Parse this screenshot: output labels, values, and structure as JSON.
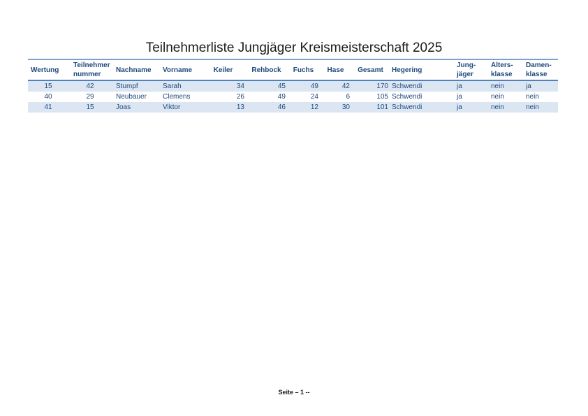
{
  "page": {
    "title": "Teilnehmerliste Jungjäger Kreismeisterschaft 2025",
    "footer": "Seite – 1 --"
  },
  "colors": {
    "header_text": "#1F497D",
    "cell_text": "#1F497D",
    "row_stripe": "#DCE6F2",
    "table_top_border": "#7BA0CD",
    "header_bottom_border": "#4F81BD",
    "title_text": "#1A1A1A"
  },
  "table": {
    "columns": [
      {
        "key": "wertung",
        "label": "Wertung"
      },
      {
        "key": "teilnehmernummer",
        "label": "Teilnehmer\nnummer"
      },
      {
        "key": "nachname",
        "label": "Nachname"
      },
      {
        "key": "vorname",
        "label": "Vorname"
      },
      {
        "key": "keiler",
        "label": "Keiler"
      },
      {
        "key": "rehbock",
        "label": "Rehbock"
      },
      {
        "key": "fuchs",
        "label": "Fuchs"
      },
      {
        "key": "hase",
        "label": "Hase"
      },
      {
        "key": "gesamt",
        "label": "Gesamt"
      },
      {
        "key": "hegering",
        "label": "Hegering"
      },
      {
        "key": "jungjaeger",
        "label": "Jung-\njäger"
      },
      {
        "key": "altersklasse",
        "label": "Alters-\nklasse"
      },
      {
        "key": "damenklasse",
        "label": "Damen-\nklasse"
      }
    ],
    "rows": [
      {
        "wertung": "15",
        "teilnehmernummer": "42",
        "nachname": "Stumpf",
        "vorname": "Sarah",
        "keiler": "34",
        "rehbock": "45",
        "fuchs": "49",
        "hase": "42",
        "gesamt": "170",
        "hegering": "Schwendi",
        "jungjaeger": "ja",
        "altersklasse": "nein",
        "damenklasse": "ja"
      },
      {
        "wertung": "40",
        "teilnehmernummer": "29",
        "nachname": "Neubauer",
        "vorname": "Clemens",
        "keiler": "26",
        "rehbock": "49",
        "fuchs": "24",
        "hase": "6",
        "gesamt": "105",
        "hegering": "Schwendi",
        "jungjaeger": "ja",
        "altersklasse": "nein",
        "damenklasse": "nein"
      },
      {
        "wertung": "41",
        "teilnehmernummer": "15",
        "nachname": "Joas",
        "vorname": "Viktor",
        "keiler": "13",
        "rehbock": "46",
        "fuchs": "12",
        "hase": "30",
        "gesamt": "101",
        "hegering": "Schwendi",
        "jungjaeger": "ja",
        "altersklasse": "nein",
        "damenklasse": "nein"
      }
    ]
  }
}
